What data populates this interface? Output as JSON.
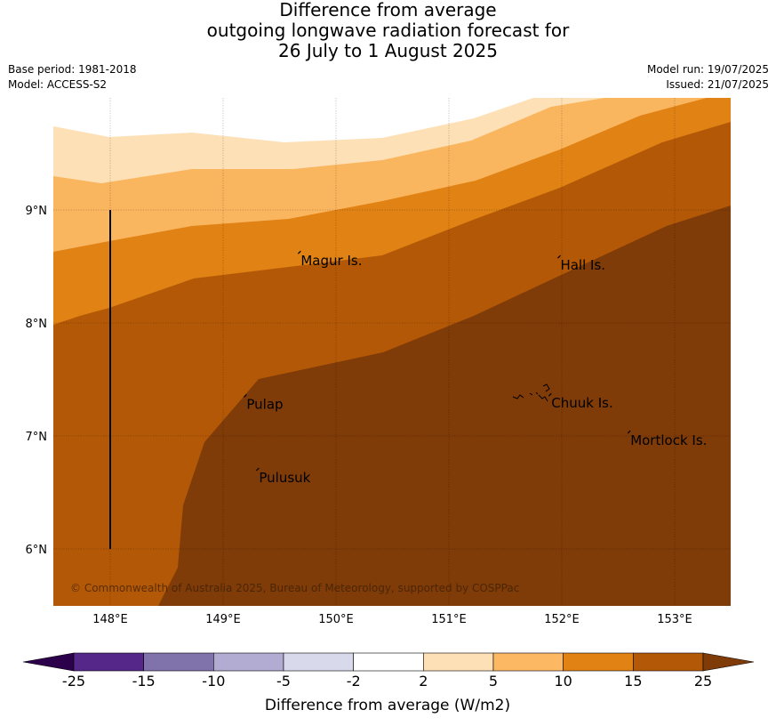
{
  "title": {
    "line1": "Difference from average",
    "line2": "outgoing longwave radiation forecast for",
    "line3": "26 July to 1 August 2025"
  },
  "meta": {
    "base_period": "Base period: 1981-2018",
    "model": "Model: ACCESS-S2",
    "model_run": "Model run: 19/07/2025",
    "issued": "Issued: 21/07/2025"
  },
  "map": {
    "lon_range": [
      147.5,
      153.5
    ],
    "lat_range": [
      5.5,
      10.0
    ],
    "lon_ticks": [
      {
        "value": 148,
        "label": "148°E"
      },
      {
        "value": 149,
        "label": "149°E"
      },
      {
        "value": 150,
        "label": "150°E"
      },
      {
        "value": 151,
        "label": "151°E"
      },
      {
        "value": 152,
        "label": "152°E"
      },
      {
        "value": 153,
        "label": "153°E"
      }
    ],
    "lat_ticks": [
      {
        "value": 9,
        "label": "9°N"
      },
      {
        "value": 8,
        "label": "8°N"
      },
      {
        "value": 7,
        "label": "7°N"
      },
      {
        "value": 6,
        "label": "6°N"
      }
    ],
    "places": [
      {
        "name": "Magur Is.",
        "lon": 149.68,
        "lat": 8.55
      },
      {
        "name": "Hall Is.",
        "lon": 151.98,
        "lat": 8.51
      },
      {
        "name": "Pulap",
        "lon": 149.2,
        "lat": 7.28
      },
      {
        "name": "Chuuk Is.",
        "lon": 151.9,
        "lat": 7.29
      },
      {
        "name": "Mortlock Is.",
        "lon": 152.6,
        "lat": 6.96
      },
      {
        "name": "Pulusuk",
        "lon": 149.31,
        "lat": 6.63
      }
    ],
    "meridian_line": {
      "lon": 148.0,
      "lat_from": 6.0,
      "lat_to": 9.0
    },
    "copyright": "© Commonwealth of Australia 2025, Bureau of Meteorology, supported by COSPPac",
    "band_colors": {
      "2_5": "#fde0b6",
      "5_10": "#fab55f",
      "10_15": "#e08214",
      "15_25": "#b35806",
      "gt25": "#7f3b08"
    }
  },
  "colorbar": {
    "title": "Difference from average (W/m2)",
    "ticks": [
      "-25",
      "-15",
      "-10",
      "-5",
      "-2",
      "2",
      "5",
      "10",
      "15",
      "25"
    ],
    "colors": [
      "#542788",
      "#8073ac",
      "#b2abd2",
      "#d8daeb",
      "#ffffff",
      "#fee0b6",
      "#fdb863",
      "#e08214",
      "#b35806"
    ],
    "under_color": "#2d004b",
    "over_color": "#7f3b08"
  }
}
